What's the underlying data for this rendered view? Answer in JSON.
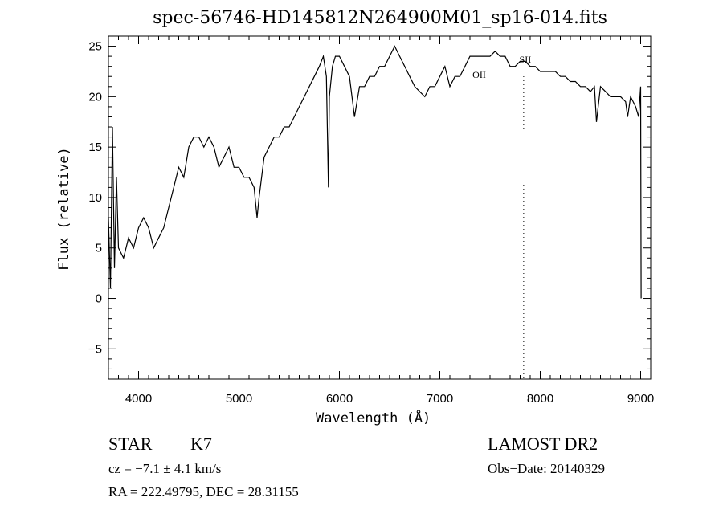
{
  "chart_data": {
    "type": "line",
    "title": "spec-56746-HD145812N264900M01_sp16-014.fits",
    "xlabel": "Wavelength (Å)",
    "ylabel": "Flux (relative)",
    "xlim": [
      3700,
      9100
    ],
    "ylim": [
      -8,
      26
    ],
    "xticks": [
      4000,
      5000,
      6000,
      7000,
      8000,
      9000
    ],
    "yticks": [
      -5,
      0,
      5,
      10,
      15,
      20,
      25
    ],
    "grid": false,
    "line_markers": [
      {
        "label": "OII",
        "x": 7440
      },
      {
        "label": "SII",
        "x": 7835
      }
    ],
    "series": [
      {
        "name": "flux",
        "x": [
          3700,
          3720,
          3740,
          3760,
          3780,
          3800,
          3850,
          3900,
          3950,
          4000,
          4050,
          4100,
          4150,
          4200,
          4250,
          4300,
          4350,
          4400,
          4450,
          4500,
          4550,
          4600,
          4650,
          4700,
          4750,
          4800,
          4850,
          4900,
          4950,
          5000,
          5050,
          5100,
          5150,
          5180,
          5200,
          5250,
          5300,
          5350,
          5400,
          5450,
          5500,
          5550,
          5600,
          5650,
          5700,
          5750,
          5800,
          5840,
          5870,
          5890,
          5900,
          5930,
          5960,
          6000,
          6050,
          6100,
          6150,
          6200,
          6250,
          6300,
          6350,
          6400,
          6450,
          6500,
          6550,
          6600,
          6650,
          6700,
          6750,
          6800,
          6850,
          6900,
          6950,
          7000,
          7050,
          7100,
          7150,
          7200,
          7250,
          7300,
          7350,
          7400,
          7450,
          7500,
          7550,
          7600,
          7650,
          7700,
          7750,
          7800,
          7850,
          7900,
          7950,
          8000,
          8050,
          8100,
          8150,
          8200,
          8250,
          8300,
          8350,
          8400,
          8450,
          8500,
          8540,
          8560,
          8600,
          8650,
          8700,
          8750,
          8800,
          8850,
          8870,
          8900,
          8950,
          8980,
          9000,
          9005
        ],
        "y": [
          8,
          1,
          17,
          3,
          12,
          5,
          4,
          6,
          5,
          7,
          8,
          7,
          5,
          6,
          7,
          9,
          11,
          13,
          12,
          15,
          16,
          16,
          15,
          16,
          15,
          13,
          14,
          15,
          13,
          13,
          12,
          12,
          11,
          8,
          10,
          14,
          15,
          16,
          16,
          17,
          17,
          18,
          19,
          20,
          21,
          22,
          23,
          24,
          22,
          11,
          20,
          23,
          24,
          24,
          23,
          22,
          18,
          21,
          21,
          22,
          22,
          23,
          23,
          24,
          25,
          24,
          23,
          22,
          21,
          20.5,
          20,
          21,
          21,
          22,
          23,
          21,
          22,
          22,
          23,
          24,
          24,
          24,
          24,
          24,
          24.5,
          24,
          24,
          23,
          23,
          23.5,
          23.5,
          23,
          23,
          22.5,
          22.5,
          22.5,
          22.5,
          22,
          22,
          21.5,
          21.5,
          21,
          21,
          20.5,
          21,
          17.5,
          21,
          20.5,
          20,
          20,
          20,
          19.5,
          18,
          20,
          19,
          18,
          21,
          0
        ]
      }
    ],
    "annotations": {
      "object_type": "STAR",
      "subclass": "K7",
      "survey": "LAMOST DR2",
      "redshift": "cz = −7.1 ± 4.1 km/s",
      "obs_date": "Obs−Date: 20140329",
      "coords": "RA = 222.49795, DEC =  28.31155"
    }
  }
}
